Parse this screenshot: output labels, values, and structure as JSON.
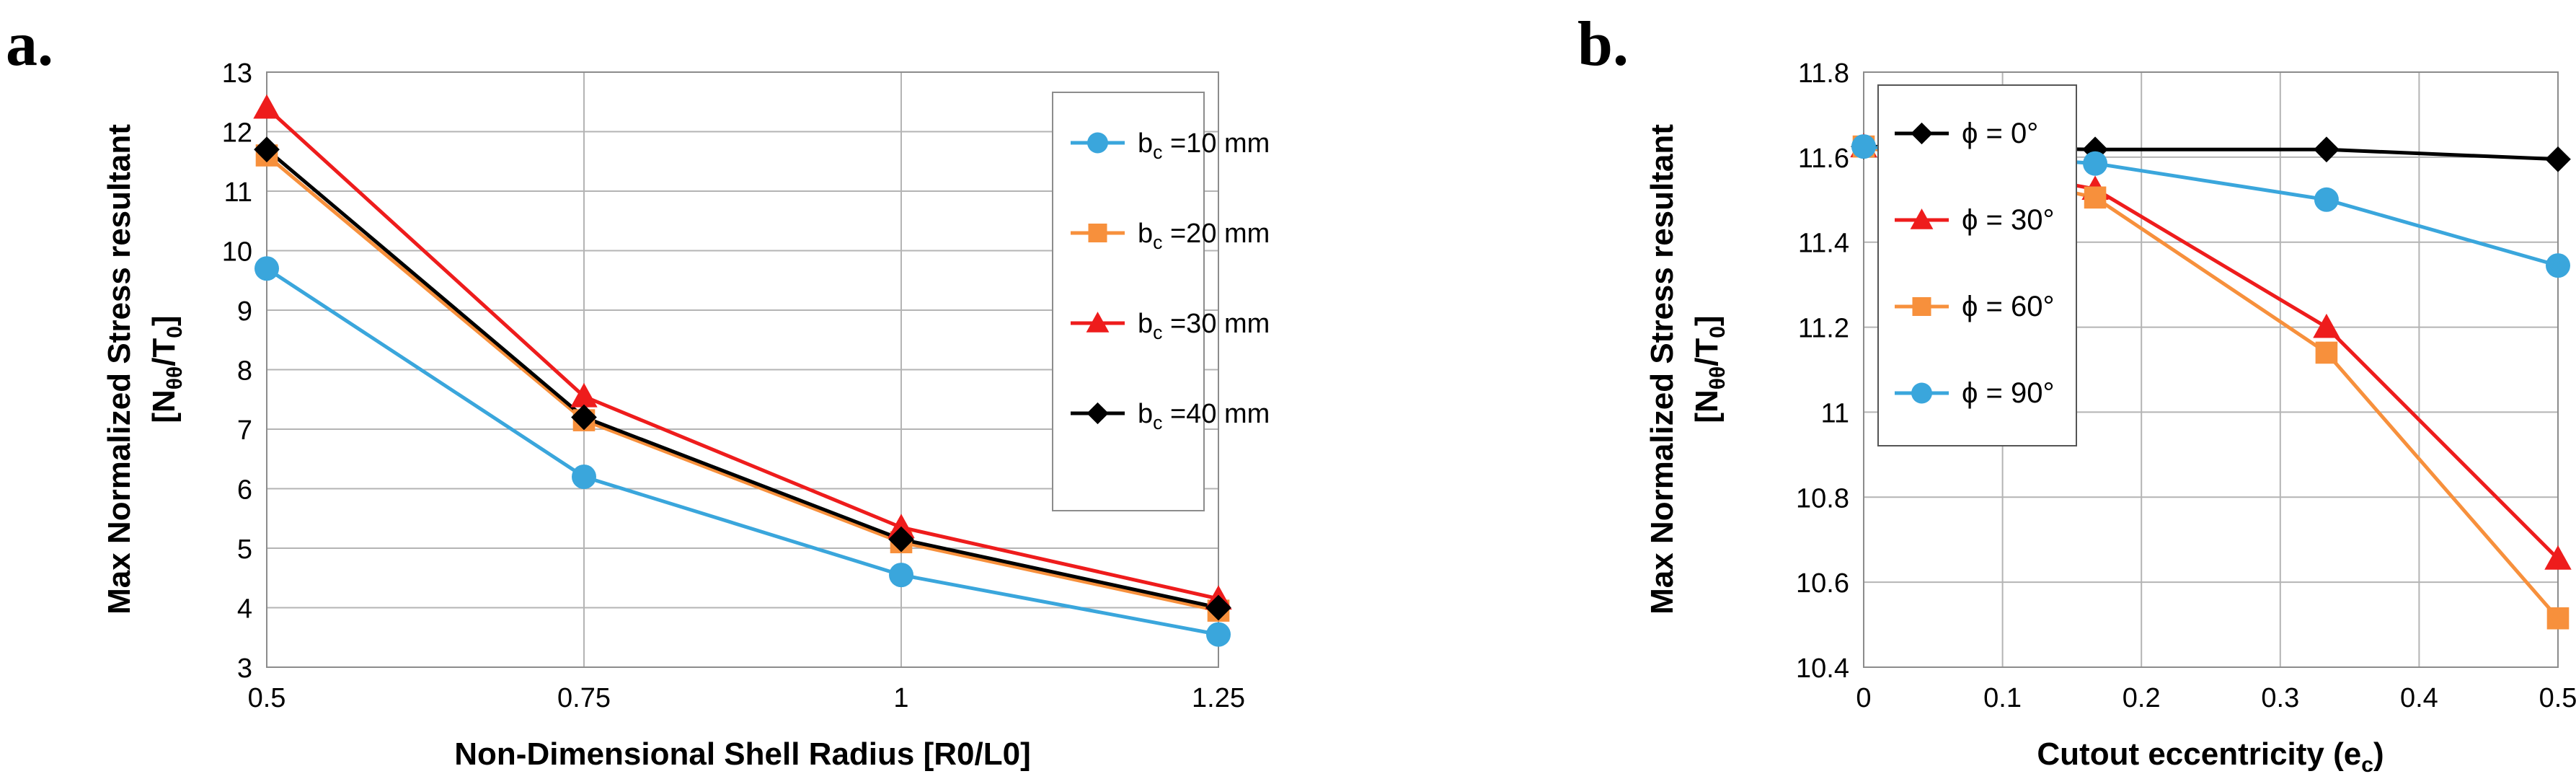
{
  "chart_data": [
    {
      "panel_label": "a.",
      "type": "line",
      "title": "",
      "xlabel": "Non-Dimensional Shell Radius [R0/L0]",
      "ylabel_line1": "Max Normalized Stress resultant",
      "ylabel_line2_pre": "[N",
      "ylabel_line2_sub1": "θθ",
      "ylabel_line2_mid": "/T",
      "ylabel_line2_sub2": "0",
      "ylabel_line2_post": "]",
      "x_categories": [
        "0.5",
        "0.75",
        "1",
        "1.25"
      ],
      "x": [
        0.5,
        0.75,
        1,
        1.25
      ],
      "xlim": [
        0.5,
        1.25
      ],
      "ylim": [
        3,
        13
      ],
      "yticks": [
        3,
        4,
        5,
        6,
        7,
        8,
        9,
        10,
        11,
        12,
        13
      ],
      "grid": true,
      "legend_position": "top-right",
      "series": [
        {
          "name_pre": "b",
          "name_sub": "c",
          "name_post": " =10 mm",
          "color": "#3aa6dc",
          "marker": "circle",
          "values": [
            9.7,
            6.2,
            4.55,
            3.55
          ]
        },
        {
          "name_pre": "b",
          "name_sub": "c",
          "name_post": " =20 mm",
          "color": "#f7903c",
          "marker": "square",
          "values": [
            11.6,
            7.15,
            5.1,
            3.95
          ]
        },
        {
          "name_pre": "b",
          "name_sub": "c",
          "name_post": " =30 mm",
          "color": "#ee1c1c",
          "marker": "triangle",
          "values": [
            12.4,
            7.55,
            5.35,
            4.15
          ]
        },
        {
          "name_pre": "b",
          "name_sub": "c",
          "name_post": " =40 mm",
          "color": "#000000",
          "marker": "diamond",
          "values": [
            11.7,
            7.2,
            5.15,
            4.0
          ]
        }
      ]
    },
    {
      "panel_label": "b.",
      "type": "line",
      "title": "",
      "xlabel_pre": "Cutout eccentricity (e",
      "xlabel_sub": "c",
      "xlabel_post": ")",
      "ylabel_line1": "Max Normalized Stress resultant",
      "ylabel_line2_pre": "[N",
      "ylabel_line2_sub1": "θθ",
      "ylabel_line2_mid": "/T",
      "ylabel_line2_sub2": "0",
      "ylabel_line2_post": "]",
      "xticks": [
        0,
        0.1,
        0.2,
        0.3,
        0.4,
        0.5
      ],
      "xtick_labels": [
        "0",
        "0.1",
        "0.2",
        "0.3",
        "0.4",
        "0.5"
      ],
      "xlim": [
        0,
        0.5
      ],
      "ylim": [
        10.4,
        11.8
      ],
      "yticks": [
        10.4,
        10.6,
        10.8,
        11,
        11.2,
        11.4,
        11.6,
        11.8
      ],
      "ytick_labels": [
        "10.4",
        "10.6",
        "10.8",
        "11",
        "11.2",
        "11.4",
        "11.6",
        "11.8"
      ],
      "grid": true,
      "legend_position": "top-left",
      "series": [
        {
          "name": "ϕ = 0°",
          "color": "#000000",
          "marker": "diamond",
          "x": [
            0,
            0.1667,
            0.3333,
            0.5
          ],
          "values": [
            11.625,
            11.618,
            11.618,
            11.595
          ]
        },
        {
          "name": "ϕ = 30°",
          "color": "#ee1c1c",
          "marker": "triangle",
          "x": [
            0,
            0.1667,
            0.3333,
            0.5
          ],
          "values": [
            11.625,
            11.525,
            11.2,
            10.655
          ]
        },
        {
          "name": "ϕ = 60°",
          "color": "#f7903c",
          "marker": "square",
          "x": [
            0,
            0.1667,
            0.3333,
            0.5
          ],
          "values": [
            11.625,
            11.505,
            11.14,
            10.515
          ]
        },
        {
          "name": "ϕ = 90°",
          "color": "#3aa6dc",
          "marker": "circle",
          "x": [
            0,
            0.1667,
            0.3333,
            0.5
          ],
          "values": [
            11.625,
            11.585,
            11.5,
            11.345
          ]
        }
      ]
    }
  ]
}
